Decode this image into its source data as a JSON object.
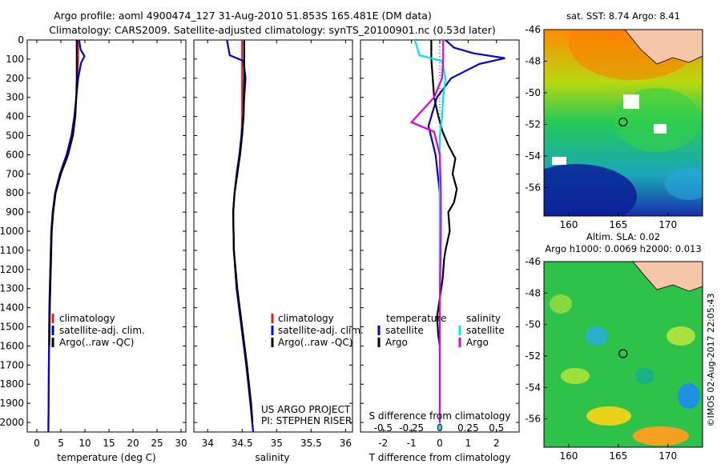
{
  "header": {
    "title_line1": "Argo profile: aoml 4900474_127 31-Aug-2010 51.853S 165.481E (DM data)",
    "title_line2": "Climatology: CARS2009. Satellite-adjusted climatology: synTS_20100901.nc (0.53d later)"
  },
  "credits": {
    "project": "US ARGO PROJECT",
    "pi": "PI: STEPHEN RISER",
    "imos_stamp": "©IMOS 02-Aug-2017 22:05:43"
  },
  "colors": {
    "climatology": "#e41a1c",
    "satellite": "#0000dd",
    "argo": "#000000",
    "s_satellite": "#00e0ff",
    "s_argo": "#e000e0"
  },
  "chart_data": [
    {
      "id": "temperature",
      "type": "line",
      "xlabel": "temperature (deg C)",
      "ylabel": "",
      "xlim": [
        -2,
        31
      ],
      "ylim": [
        2050,
        0
      ],
      "xticks": [
        0,
        5,
        10,
        15,
        20,
        25,
        30
      ],
      "yticks": [
        0,
        100,
        200,
        300,
        400,
        500,
        600,
        700,
        800,
        900,
        1000,
        1100,
        1200,
        1300,
        1400,
        1500,
        1600,
        1700,
        1800,
        1900,
        2000
      ],
      "legend": [
        "climatology",
        "satellite-adj. clim.",
        "Argo(..raw -QC)"
      ],
      "legend_position": "lower-right",
      "series": [
        {
          "name": "climatology",
          "color": "#e41a1c",
          "x": [
            8.6,
            8.6,
            8.5,
            8.2,
            7.9,
            7.2,
            6.2,
            4.8,
            3.8,
            3.3,
            3.0,
            2.8,
            2.6,
            2.5,
            2.4
          ],
          "y": [
            0,
            100,
            200,
            300,
            400,
            500,
            600,
            700,
            800,
            900,
            1000,
            1200,
            1400,
            1700,
            2050
          ]
        },
        {
          "name": "satellite-adj. clim.",
          "color": "#0000dd",
          "x": [
            8.8,
            9.1,
            9.9,
            9.2,
            8.6,
            8.2,
            7.8,
            7.2,
            6.2,
            4.8,
            3.8,
            3.3,
            3.0,
            2.8,
            2.6,
            2.5,
            2.4
          ],
          "y": [
            0,
            50,
            85,
            120,
            200,
            300,
            400,
            500,
            600,
            700,
            800,
            900,
            1000,
            1200,
            1400,
            1700,
            2050
          ]
        },
        {
          "name": "Argo(..raw -QC)",
          "color": "#000000",
          "x": [
            8.3,
            8.3,
            8.3,
            8.2,
            8.0,
            7.5,
            6.5,
            5.0,
            3.9,
            3.4,
            3.1,
            2.9,
            2.7,
            2.6
          ],
          "y": [
            0,
            100,
            200,
            300,
            400,
            500,
            600,
            700,
            800,
            900,
            1000,
            1200,
            1400,
            1600
          ]
        }
      ]
    },
    {
      "id": "salinity",
      "type": "line",
      "xlabel": "salinity",
      "ylabel": "",
      "xlim": [
        33.8,
        36.1
      ],
      "ylim": [
        2050,
        0
      ],
      "xticks": [
        34,
        34.5,
        35,
        35.5,
        36
      ],
      "legend": [
        "climatology",
        "satellite-adj. clim.",
        "Argo(..raw -QC)"
      ],
      "legend_position": "lower-right",
      "series": [
        {
          "name": "climatology",
          "color": "#e41a1c",
          "x": [
            34.5,
            34.5,
            34.5,
            34.5,
            34.49,
            34.46,
            34.43,
            34.39,
            34.37,
            34.38,
            34.42,
            34.49,
            34.56,
            34.62,
            34.66
          ],
          "y": [
            0,
            100,
            200,
            400,
            500,
            600,
            700,
            800,
            900,
            1100,
            1300,
            1500,
            1700,
            1900,
            2050
          ]
        },
        {
          "name": "satellite-adj. clim.",
          "color": "#0000dd",
          "x": [
            34.28,
            34.32,
            34.52,
            34.55,
            34.53,
            34.52,
            34.49,
            34.46,
            34.42,
            34.39,
            34.37,
            34.38,
            34.42,
            34.49,
            34.56,
            34.62,
            34.66
          ],
          "y": [
            0,
            80,
            110,
            200,
            300,
            400,
            500,
            600,
            700,
            800,
            900,
            1100,
            1300,
            1500,
            1700,
            1900,
            2050
          ]
        },
        {
          "name": "Argo(..raw -QC)",
          "color": "#000000",
          "x": [
            34.53,
            34.53,
            34.53,
            34.52,
            34.5,
            34.47,
            34.43,
            34.39,
            34.37,
            34.38,
            34.43,
            34.5,
            34.57,
            34.63,
            34.65
          ],
          "y": [
            0,
            100,
            200,
            400,
            500,
            600,
            700,
            800,
            900,
            1100,
            1300,
            1500,
            1700,
            1900,
            2000
          ]
        }
      ]
    },
    {
      "id": "difference",
      "type": "line",
      "xlabel": "T difference from climatology",
      "top_label": "S difference from climatology",
      "xlim": [
        -2.8,
        2.8
      ],
      "ylim": [
        2050,
        0
      ],
      "xticks": [
        -2,
        -1,
        0,
        1,
        2
      ],
      "s_xticks": [
        -0.5,
        -0.25,
        0,
        0.25,
        0.5
      ],
      "s_tick_labels": [
        "-0.5",
        "-0.25",
        "0",
        "0.25",
        "0.5"
      ],
      "legend_headers": [
        "temperature",
        "salinity"
      ],
      "legend": [
        "satellite",
        "Argo",
        "satellite",
        "Argo"
      ],
      "series": [
        {
          "name": "satellite",
          "group": "temperature",
          "color": "#0000dd",
          "x": [
            0.2,
            0.5,
            1.2,
            2.3,
            1.4,
            0.4,
            -0.1,
            -0.4,
            -0.15,
            0.0,
            0.0,
            0.0
          ],
          "y": [
            0,
            40,
            70,
            95,
            125,
            200,
            300,
            450,
            600,
            800,
            1000,
            1300
          ]
        },
        {
          "name": "Argo",
          "group": "temperature",
          "color": "#000000",
          "x": [
            -0.3,
            -0.3,
            -0.25,
            -0.2,
            -0.05,
            0.1,
            0.3,
            0.55,
            0.45,
            0.6,
            0.5,
            0.3,
            0.35,
            0.2,
            0.15,
            0.1,
            0.0,
            -0.1,
            -0.05,
            0.0
          ],
          "y": [
            0,
            100,
            200,
            300,
            400,
            480,
            550,
            620,
            700,
            780,
            850,
            900,
            1000,
            1100,
            1150,
            1250,
            1350,
            1450,
            1550,
            1600
          ]
        },
        {
          "name": "satellite",
          "group": "salinity",
          "color": "#00e0ff",
          "x": [
            -0.22,
            -0.18,
            0.02,
            0.05,
            0.03,
            0.02,
            0.0,
            0.0,
            0.0,
            0.0
          ],
          "y": [
            0,
            80,
            110,
            200,
            300,
            400,
            500,
            700,
            1000,
            2050
          ]
        },
        {
          "name": "Argo",
          "group": "salinity",
          "color": "#e000e0",
          "x": [
            0.03,
            0.03,
            0.02,
            -0.05,
            -0.25,
            -0.05,
            0.0,
            0.01,
            0.01,
            0.0,
            0.0,
            0.0
          ],
          "y": [
            0,
            100,
            200,
            300,
            430,
            480,
            600,
            800,
            1000,
            1400,
            1800,
            2000
          ]
        }
      ]
    },
    {
      "id": "sst-map",
      "type": "heatmap",
      "title": "sat. SST: 8.74 Argo: 8.41",
      "xlim": [
        157.5,
        173.5
      ],
      "ylim": [
        -57.8,
        -46
      ],
      "xticks": [
        160,
        165,
        170
      ],
      "yticks": [
        -46,
        -48,
        -50,
        -52,
        -54,
        -56
      ],
      "xtick_labels": [
        "160",
        "165",
        "170"
      ],
      "ytick_labels": [
        "-46",
        "-48",
        "-50",
        "-52",
        "-54",
        "-56"
      ],
      "float_position": [
        165.481,
        -51.853
      ]
    },
    {
      "id": "sla-map",
      "type": "heatmap",
      "title_line1": "Altim. SLA: 0.02",
      "title_line2": "Argo h1000: 0.0069 h2000: 0.013",
      "xlim": [
        157.5,
        173.5
      ],
      "ylim": [
        -57.8,
        -46
      ],
      "xticks": [
        160,
        165,
        170
      ],
      "yticks": [
        -46,
        -48,
        -50,
        -52,
        -54,
        -56
      ],
      "xtick_labels": [
        "160",
        "165",
        "170"
      ],
      "ytick_labels": [
        "-46",
        "-48",
        "-50",
        "-52",
        "-54",
        "-56"
      ],
      "float_position": [
        165.481,
        -51.853
      ]
    }
  ]
}
